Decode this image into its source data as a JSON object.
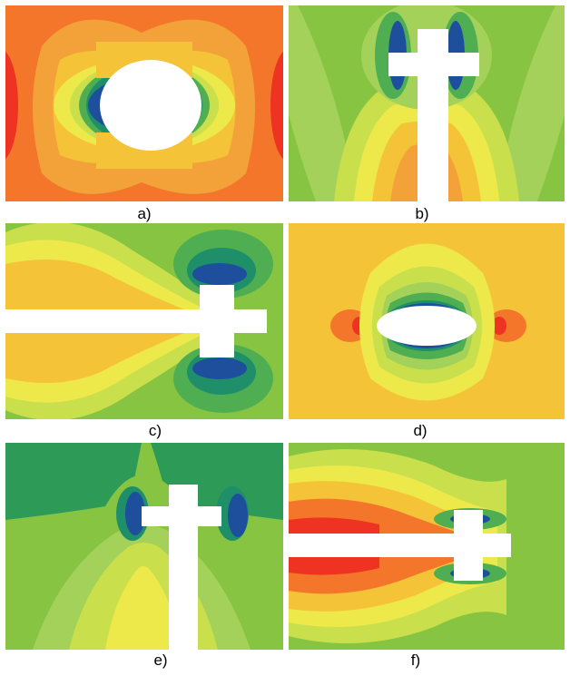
{
  "figure": {
    "captions": [
      "a)",
      "b)",
      "c)",
      "d)",
      "e)",
      "f)"
    ]
  },
  "palette": {
    "red": "#ee3322",
    "orange": "#f4762a",
    "light_orange": "#f3a23a",
    "gold": "#f5c338",
    "yellow": "#eee94a",
    "yellow_green": "#c9e04c",
    "light_green": "#a4d15a",
    "green": "#86c441",
    "mid_green": "#4fae52",
    "teal_green": "#2e9a58",
    "teal": "#1f8f6a",
    "blue": "#1e4f9c",
    "white": "#ffffff"
  }
}
